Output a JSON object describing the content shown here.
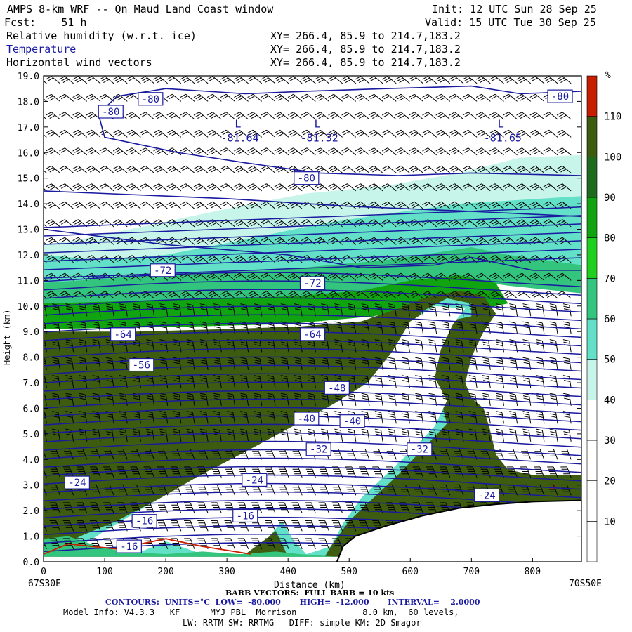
{
  "header": {
    "title": "AMPS 8-km WRF -- Qn Maud Land Coast window",
    "init": "Init: 12 UTC Sun 28 Sep 25",
    "fcst": "Fcst:    51 h",
    "valid": "Valid: 15 UTC Tue 30 Sep 25",
    "layers": [
      {
        "name": "Relative humidity (w.r.t. ice)",
        "xy": "XY= 266.4, 85.9 to 214.7,183.2"
      },
      {
        "name": "Temperature",
        "xy": "XY= 266.4, 85.9 to 214.7,183.2"
      },
      {
        "name": "Horizontal wind vectors",
        "xy": "XY= 266.4, 85.9 to 214.7,183.2"
      }
    ]
  },
  "colors": {
    "contour": "#1a1aa0",
    "terrain": "#ffffff",
    "rh_bands": [
      "#ffffff",
      "#ffffff",
      "#ffffff",
      "#c8f5ea",
      "#63e0c8",
      "#33c47d",
      "#1fd01f",
      "#10a510",
      "#1e6b1e",
      "#3d5c0f",
      "#c81e00"
    ]
  },
  "chart_data": {
    "type": "heatmap",
    "description_type": "vertical cross-section",
    "xlabel": "Distance (km)",
    "ylabel": "Height (km)",
    "xlim": [
      0,
      880
    ],
    "ylim": [
      0.0,
      19.0
    ],
    "x_ticks": [
      "0",
      "100",
      "200",
      "300",
      "400",
      "500",
      "600",
      "700",
      "800"
    ],
    "y_ticks": [
      "0.0",
      "1.0",
      "2.0",
      "3.0",
      "4.0",
      "5.0",
      "6.0",
      "7.0",
      "8.0",
      "9.0",
      "10.0",
      "11.0",
      "12.0",
      "13.0",
      "14.0",
      "15.0",
      "16.0",
      "17.0",
      "18.0",
      "19.0"
    ],
    "x_start_label": "67S30E",
    "x_end_label": "70S50E",
    "colorbar": {
      "unit": "%",
      "ticks": [
        "10",
        "20",
        "30",
        "40",
        "50",
        "60",
        "70",
        "80",
        "90",
        "100",
        "110"
      ]
    },
    "contour_labels": [
      {
        "text": "-80",
        "x": 110,
        "y": 17.6
      },
      {
        "text": "-80",
        "x": 175,
        "y": 18.1
      },
      {
        "text": "-80",
        "x": 430,
        "y": 15.0
      },
      {
        "text": "-80",
        "x": 845,
        "y": 18.2
      },
      {
        "text": "-72",
        "x": 195,
        "y": 11.4
      },
      {
        "text": "-72",
        "x": 440,
        "y": 10.9
      },
      {
        "text": "-64",
        "x": 130,
        "y": 8.9
      },
      {
        "text": "-64",
        "x": 440,
        "y": 8.9
      },
      {
        "text": "-56",
        "x": 160,
        "y": 7.7
      },
      {
        "text": "-48",
        "x": 480,
        "y": 6.8
      },
      {
        "text": "-40",
        "x": 430,
        "y": 5.6
      },
      {
        "text": "-40",
        "x": 505,
        "y": 5.5
      },
      {
        "text": "-32",
        "x": 450,
        "y": 4.4
      },
      {
        "text": "-32",
        "x": 615,
        "y": 4.4
      },
      {
        "text": "-24",
        "x": 55,
        "y": 3.1
      },
      {
        "text": "-24",
        "x": 345,
        "y": 3.2
      },
      {
        "text": "-24",
        "x": 725,
        "y": 2.6
      },
      {
        "text": "-16",
        "x": 165,
        "y": 1.6
      },
      {
        "text": "-16",
        "x": 330,
        "y": 1.8
      },
      {
        "text": "-16",
        "x": 140,
        "y": 0.6
      }
    ],
    "lows": [
      {
        "value": "-81.64",
        "x": 290,
        "y": 16.6
      },
      {
        "value": "-81.32",
        "x": 420,
        "y": 16.6
      },
      {
        "value": "-81.65",
        "x": 720,
        "y": 16.6
      }
    ],
    "terrain_height_km": [
      {
        "x": 480,
        "y": 0.0
      },
      {
        "x": 490,
        "y": 0.6
      },
      {
        "x": 510,
        "y": 1.0
      },
      {
        "x": 560,
        "y": 1.4
      },
      {
        "x": 620,
        "y": 1.8
      },
      {
        "x": 680,
        "y": 2.1
      },
      {
        "x": 740,
        "y": 2.25
      },
      {
        "x": 800,
        "y": 2.35
      },
      {
        "x": 880,
        "y": 2.4
      }
    ]
  },
  "footer": {
    "barb": "BARB VECTORS:  FULL BARB = 10 kts",
    "contours": "CONTOURS:  UNITS=°C  LOW=  -80.000       HIGH=  -12.000       INTERVAL=    2.0000",
    "model1": "Model Info: V4.3.3   KF      MYJ PBL  Morrison             8.0 km,  60 levels,",
    "model2": "LW: RRTM SW: RRTMG   DIFF: simple KM: 2D Smagor"
  },
  "low_marker": "L"
}
